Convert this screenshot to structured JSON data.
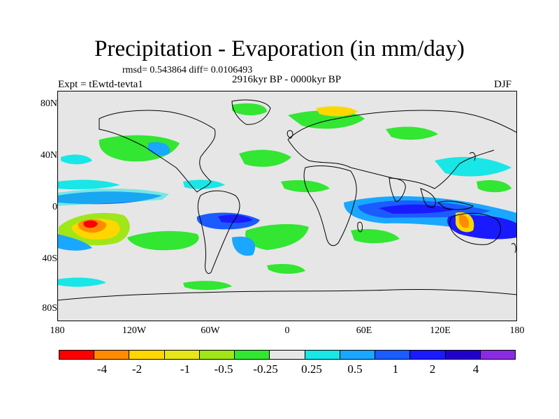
{
  "title": "Precipitation - Evaporation (in mm/day)",
  "stats": "rmsd= 0.543864 diff= 0.0106493",
  "period": "2916kyr BP - 0000kyr BP",
  "experiment": "Expt = tEwtd-tevta1",
  "season": "DJF",
  "lat_labels": [
    "80N",
    "40N",
    "0",
    "40S",
    "80S"
  ],
  "lon_labels": [
    "180",
    "120W",
    "60W",
    "0",
    "60E",
    "120E",
    "180"
  ],
  "colorbar": {
    "colors": [
      "#ff0000",
      "#ff8c00",
      "#ffd700",
      "#e6e619",
      "#a0e619",
      "#32e632",
      "#e6e6e6",
      "#19e6e6",
      "#1aa7ff",
      "#1a5cff",
      "#1a1aff",
      "#2200cc",
      "#8a2be2"
    ],
    "labels": [
      "-4",
      "-2",
      "-1",
      "-0.5",
      "-0.25",
      "0.25",
      "0.5",
      "1",
      "2",
      "4"
    ]
  },
  "map": {
    "background": "#e6e6e6",
    "coast_color": "#000000"
  }
}
